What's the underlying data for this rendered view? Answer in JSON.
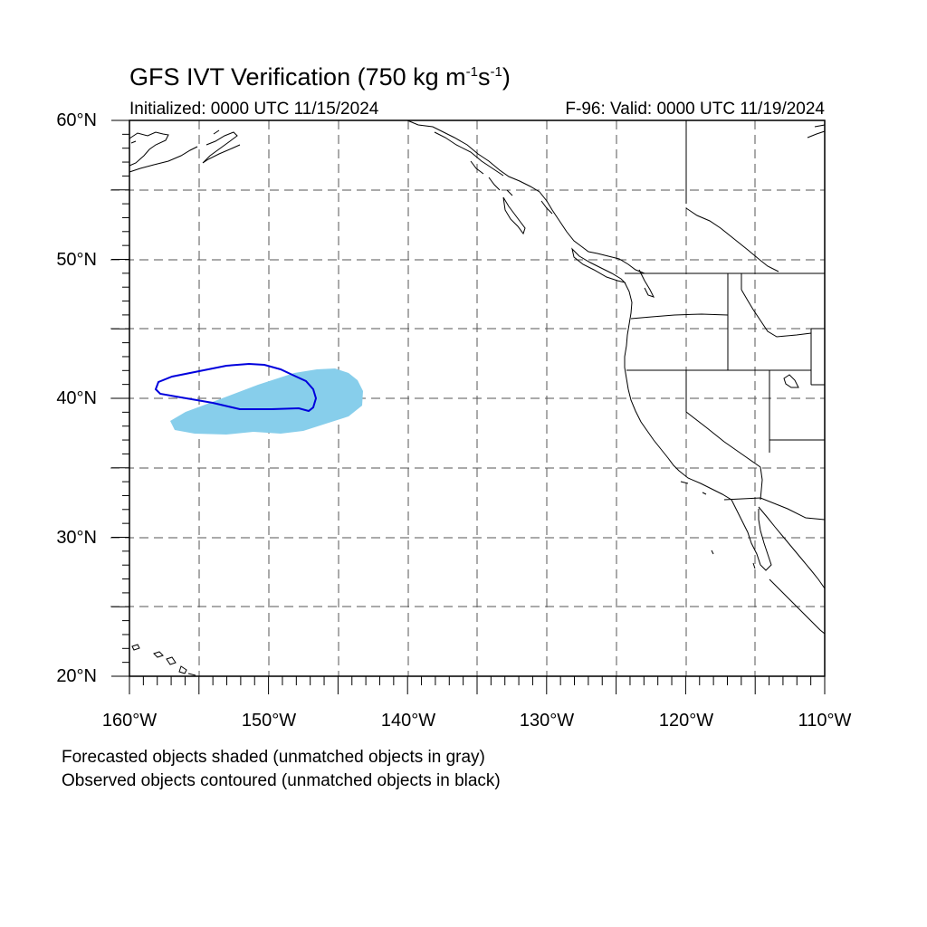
{
  "title": {
    "main": "GFS IVT Verification (750 kg m",
    "exp1": "-1",
    "mid": "s",
    "exp2": "-1",
    "end": ")"
  },
  "subtitle": {
    "initialized": "Initialized: 0000 UTC 11/15/2024",
    "valid": "F-96: Valid: 0000 UTC 11/19/2024"
  },
  "map": {
    "lon_range": [
      -160,
      -110
    ],
    "lat_range": [
      20,
      60
    ],
    "grid_spacing_deg": 5,
    "grid_style": "dashed",
    "lat_labels": [
      "60°N",
      "50°N",
      "40°N",
      "30°N",
      "20°N"
    ],
    "lon_labels": [
      "160°W",
      "150°W",
      "140°W",
      "130°W",
      "120°W",
      "110°W"
    ],
    "forecast_object_color": "#87ceeb",
    "observed_object_color": "#0000ff",
    "coastline_color": "#000000"
  },
  "notes": {
    "forecast": "Forecasted objects shaded (unmatched objects in gray)",
    "observed": "Observed objects contoured (unmatched objects in black)"
  }
}
